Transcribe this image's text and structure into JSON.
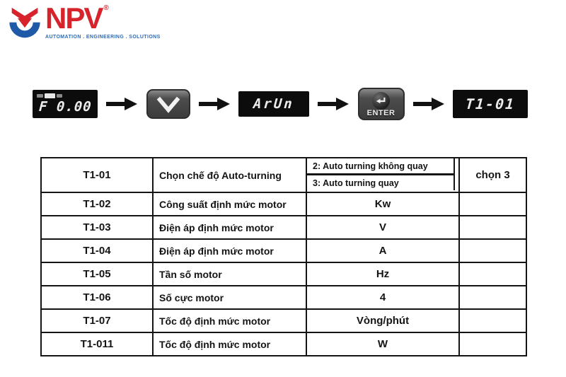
{
  "colors": {
    "brand_red": "#d7232b",
    "brand_blue": "#1f5aa8",
    "tagline_blue": "#2e6cb5",
    "display_bg": "#0c0c0c",
    "display_text": "#ededed",
    "key_gray": "#4d4d4d",
    "table_border": "#141414"
  },
  "logo": {
    "brand": "NPV",
    "registered": "®",
    "tagline": "AUTOMATION . ENGINEERING . SOLUTIONS",
    "mark_icon": "npv-chevron-cup-icon"
  },
  "sequence": {
    "arrow_icon": "right-arrow-icon",
    "displays": [
      {
        "text": "F 0.00"
      },
      {
        "text": "ArUn"
      },
      {
        "text": "T1-01"
      }
    ],
    "buttons": [
      {
        "icon": "chevron-down-icon",
        "label": ""
      },
      {
        "icon": "enter-return-icon",
        "label": "ENTER"
      }
    ]
  },
  "table": {
    "rows": [
      {
        "code": "T1-01",
        "desc": "Chọn chế độ Auto-turning",
        "options": [
          "2: Auto turning không quay",
          "3: Auto turning quay"
        ],
        "note": "chọn 3"
      },
      {
        "code": "T1-02",
        "desc": "Công suất định mức motor",
        "value": "Kw",
        "note": ""
      },
      {
        "code": "T1-03",
        "desc": "Điện áp định mức motor",
        "value": "V",
        "note": ""
      },
      {
        "code": "T1-04",
        "desc": "Điện áp định mức motor",
        "value": "A",
        "note": ""
      },
      {
        "code": "T1-05",
        "desc": "Tần số motor",
        "value": "Hz",
        "note": ""
      },
      {
        "code": "T1-06",
        "desc": "Số cực motor",
        "value": "4",
        "note": ""
      },
      {
        "code": "T1-07",
        "desc": "Tốc độ định mức motor",
        "value": "Vòng/phút",
        "note": ""
      },
      {
        "code": "T1-011",
        "desc": "Tốc độ định mức motor",
        "value": "W",
        "note": ""
      }
    ]
  }
}
